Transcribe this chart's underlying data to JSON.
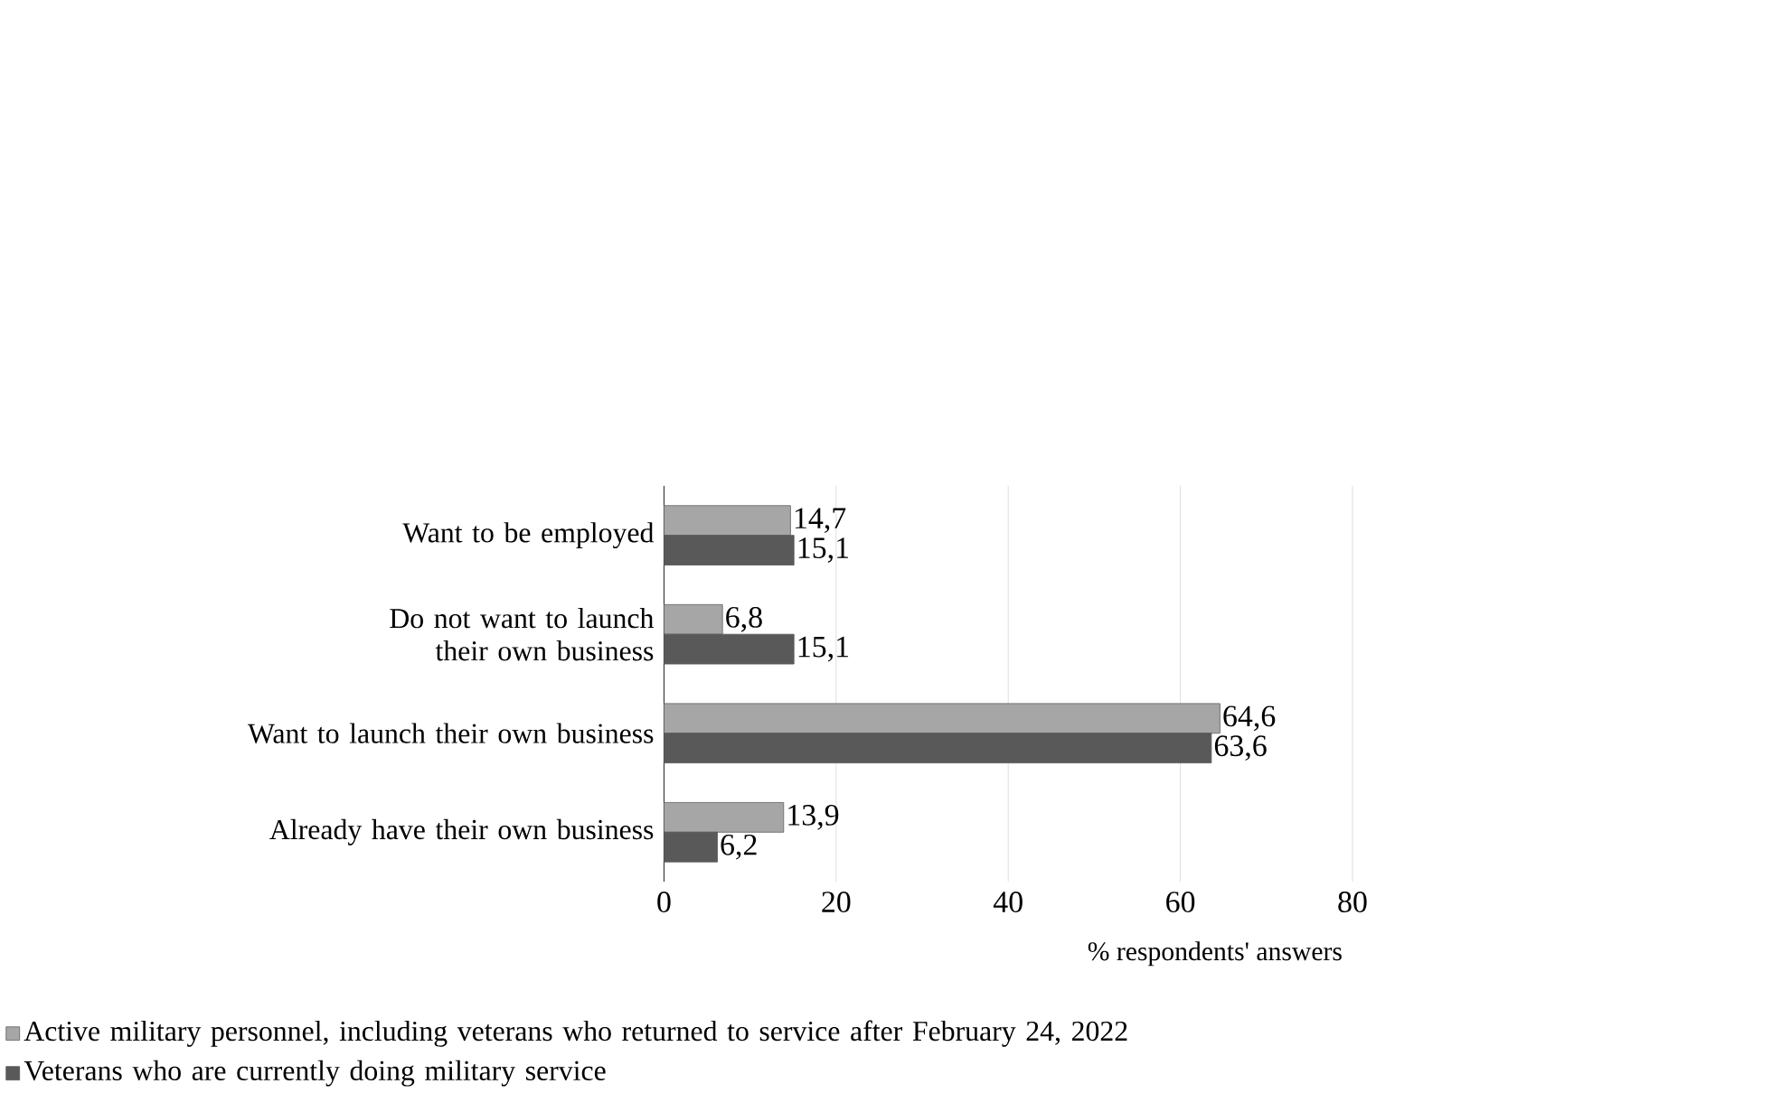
{
  "chart_data": {
    "type": "bar",
    "orientation": "horizontal",
    "xlabel": "% respondents' answers",
    "categories": [
      "Want to be employed",
      "Do not want to launch their own business",
      "Want to launch their own business",
      "Already have their own business"
    ],
    "series": [
      {
        "name": "Active military personnel, including veterans who returned to service after February 24, 2022",
        "color": "#a6a6a6",
        "values": [
          14.7,
          6.8,
          64.6,
          13.9
        ],
        "value_labels": [
          "14,7",
          "6,8",
          "64,6",
          "13,9"
        ]
      },
      {
        "name": "Veterans who are currently doing military service",
        "color": "#595959",
        "values": [
          15.1,
          15.1,
          63.6,
          6.2
        ],
        "value_labels": [
          "15,1",
          "15,1",
          "63,6",
          "6,2"
        ]
      }
    ],
    "xlim": [
      0,
      80
    ],
    "xticks": [
      0,
      20,
      40,
      60,
      80
    ],
    "grid": "x",
    "legend": "bottom"
  }
}
